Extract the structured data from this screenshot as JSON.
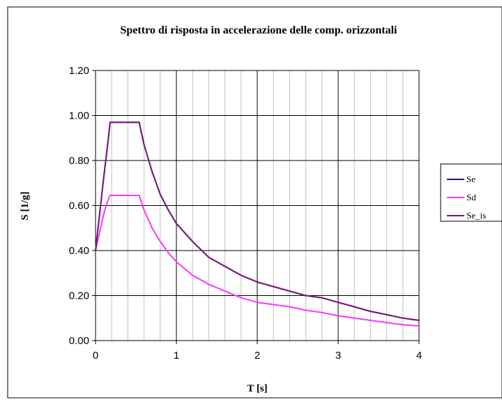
{
  "chart_data": {
    "type": "line",
    "title": "Spettro di risposta in accelerazione delle comp. orizzontali",
    "xlabel": "T [s]",
    "ylabel": "S [1/g]",
    "xlim": [
      0,
      4
    ],
    "ylim": [
      0,
      1.2
    ],
    "x_ticks": [
      "0",
      "1",
      "2",
      "3",
      "4"
    ],
    "y_ticks": [
      "0.00",
      "0.20",
      "0.40",
      "0.60",
      "0.80",
      "1.00",
      "1.20"
    ],
    "grid": true,
    "legend_position": "right",
    "colors": {
      "Se": "#1a1a8c",
      "Sd": "#ff33ff",
      "Se_is": "#7a1a7a"
    },
    "series": [
      {
        "name": "Se",
        "legend_label": "Se",
        "x": [
          0,
          0.05,
          0.1,
          0.15,
          0.18,
          0.2,
          0.3,
          0.4,
          0.54,
          0.6,
          0.7,
          0.8,
          0.9,
          1.0,
          1.2,
          1.4,
          1.6,
          1.8,
          2.0,
          2.2,
          2.4,
          2.6,
          2.8,
          3.0,
          3.2,
          3.4,
          3.6,
          3.8,
          4.0
        ],
        "y": [
          0.4,
          0.56,
          0.72,
          0.87,
          0.97,
          0.97,
          0.97,
          0.97,
          0.97,
          0.87,
          0.75,
          0.65,
          0.58,
          0.52,
          0.44,
          0.37,
          0.33,
          0.29,
          0.26,
          0.24,
          0.22,
          0.2,
          0.19,
          0.17,
          0.15,
          0.13,
          0.115,
          0.1,
          0.09
        ]
      },
      {
        "name": "Sd",
        "legend_label": "Sd",
        "x": [
          0,
          0.05,
          0.1,
          0.15,
          0.18,
          0.2,
          0.3,
          0.4,
          0.54,
          0.6,
          0.7,
          0.8,
          0.9,
          1.0,
          1.2,
          1.4,
          1.6,
          1.8,
          2.0,
          2.2,
          2.4,
          2.6,
          2.8,
          3.0,
          3.2,
          3.4,
          3.6,
          3.8,
          4.0
        ],
        "y": [
          0.4,
          0.48,
          0.56,
          0.62,
          0.645,
          0.645,
          0.645,
          0.645,
          0.645,
          0.58,
          0.5,
          0.44,
          0.39,
          0.35,
          0.29,
          0.25,
          0.22,
          0.19,
          0.17,
          0.16,
          0.15,
          0.135,
          0.125,
          0.11,
          0.1,
          0.09,
          0.08,
          0.07,
          0.065
        ]
      },
      {
        "name": "Se_is",
        "legend_label": "Se_is",
        "x": [
          0,
          0.05,
          0.1,
          0.15,
          0.18,
          0.2,
          0.3,
          0.4,
          0.54,
          0.6,
          0.7,
          0.8,
          0.9,
          1.0,
          1.2,
          1.4,
          1.6,
          1.8,
          2.0,
          2.2,
          2.4,
          2.6,
          2.8,
          3.0,
          3.2,
          3.4,
          3.6,
          3.8,
          4.0
        ],
        "y": [
          0.4,
          0.56,
          0.72,
          0.87,
          0.97,
          0.97,
          0.97,
          0.97,
          0.97,
          0.87,
          0.75,
          0.65,
          0.58,
          0.52,
          0.44,
          0.37,
          0.33,
          0.29,
          0.26,
          0.24,
          0.22,
          0.2,
          0.19,
          0.17,
          0.15,
          0.13,
          0.115,
          0.1,
          0.09
        ]
      }
    ]
  }
}
